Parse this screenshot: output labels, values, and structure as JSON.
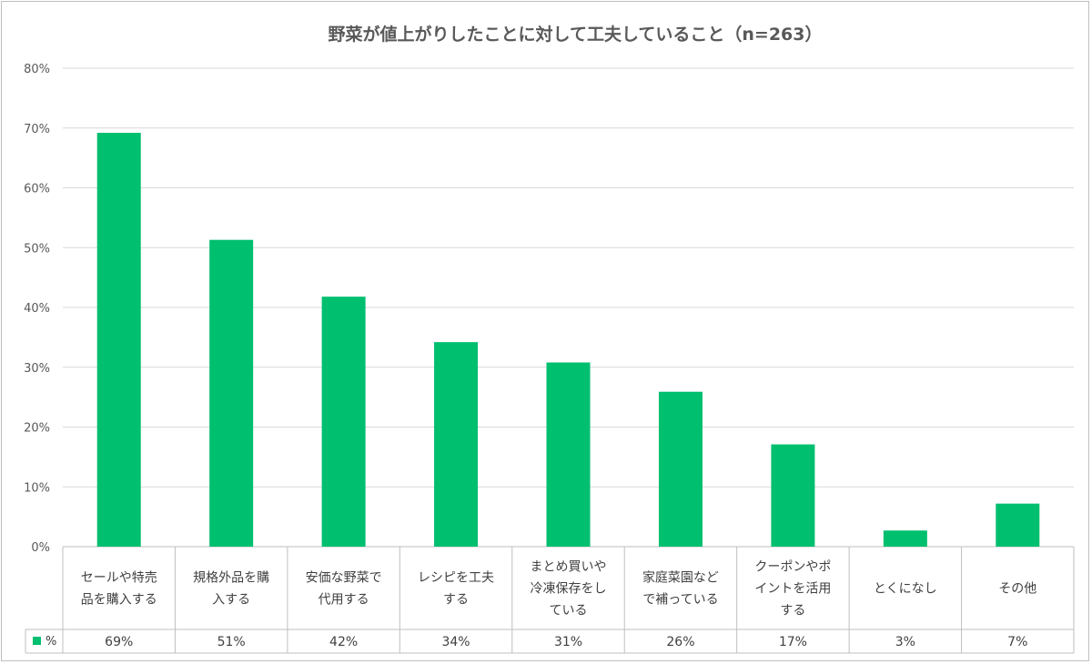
{
  "chart_data": {
    "type": "bar",
    "title": "野菜が値上がりしたことに対して工夫していること（n=263）",
    "categories": [
      [
        "セールや特売",
        "品を購入する"
      ],
      [
        "規格外品を購",
        "入する"
      ],
      [
        "安価な野菜で",
        "代用する"
      ],
      [
        "レシピを工夫",
        "する"
      ],
      [
        "まとめ買いや",
        "冷凍保存をし",
        "ている"
      ],
      [
        "家庭菜園など",
        "で補っている"
      ],
      [
        "クーポンやポ",
        "イントを活用",
        "する"
      ],
      [
        "とくになし"
      ],
      [
        "その他"
      ]
    ],
    "series": [
      {
        "name": "%",
        "values": [
          69.2,
          51.3,
          41.8,
          34.2,
          30.8,
          25.9,
          17.1,
          2.7,
          7.2
        ],
        "labels": [
          "69%",
          "51%",
          "42%",
          "34%",
          "31%",
          "26%",
          "17%",
          "3%",
          "7%"
        ],
        "color": "#00bf6f"
      }
    ],
    "ylim": [
      0,
      80
    ],
    "yticks": [
      "0%",
      "10%",
      "20%",
      "30%",
      "40%",
      "50%",
      "60%",
      "70%",
      "80%"
    ],
    "grid": true,
    "legend": "data-table"
  }
}
